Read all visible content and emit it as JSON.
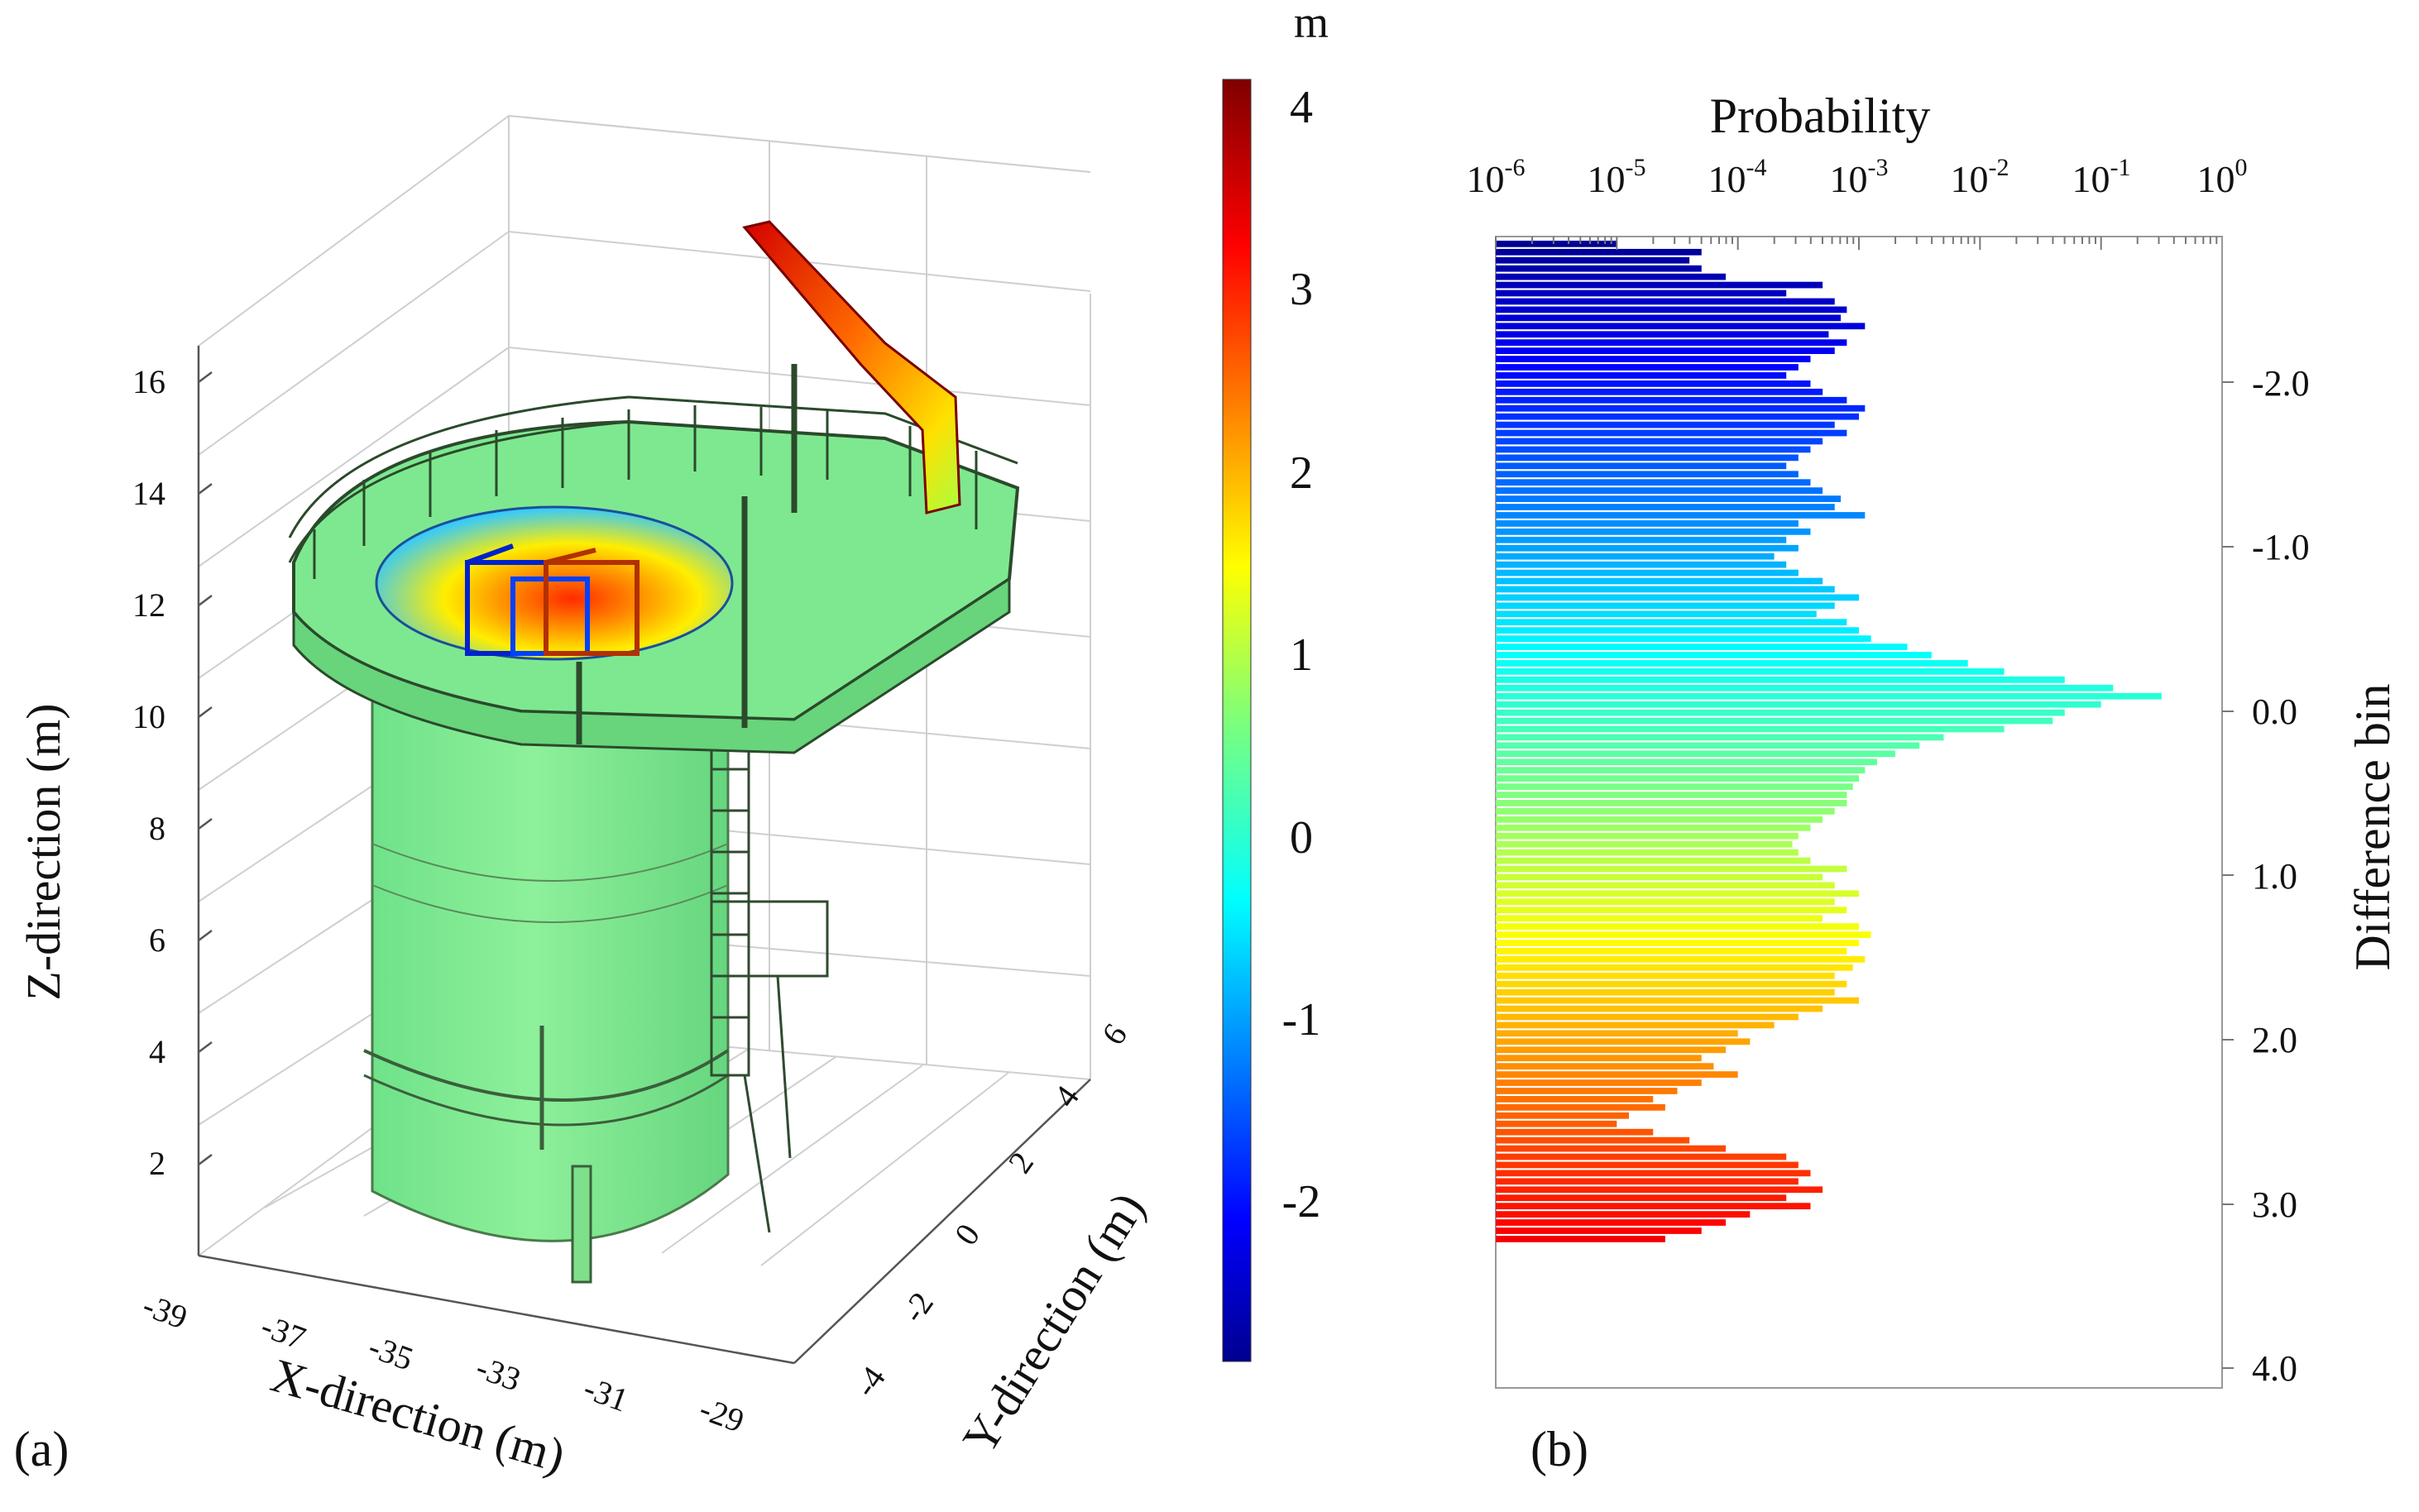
{
  "figure": {
    "panel_a_label": "(a)",
    "panel_b_label": "(b)"
  },
  "chart_data": [
    {
      "type": "scatter",
      "subtype": "3d-point-cloud",
      "panel": "(a)",
      "title": "",
      "xlabel": "X-direction (m)",
      "ylabel": "Y-direction (m)",
      "zlabel": "Z-direction (m)",
      "x_ticks": [
        "-39",
        "-37",
        "-35",
        "-33",
        "-31",
        "-29"
      ],
      "y_ticks": [
        "-4",
        "-2",
        "0",
        "2",
        "4",
        "6"
      ],
      "z_ticks": [
        "2",
        "4",
        "6",
        "8",
        "10",
        "12",
        "14",
        "16"
      ],
      "xlim": [
        -39,
        -29
      ],
      "ylim": [
        -4,
        6
      ],
      "zlim": [
        0,
        16
      ],
      "grid": true,
      "colorbar": {
        "unit": "m",
        "range": [
          -2.9,
          4.1
        ],
        "ticks": [
          "4",
          "3",
          "2",
          "1",
          "0",
          "-1",
          "-2"
        ],
        "colormap": "jet"
      }
    },
    {
      "type": "bar",
      "orientation": "horizontal",
      "panel": "(b)",
      "title": "Probability",
      "xlabel": "Probability",
      "ylabel": "Difference bin",
      "x_scale": "log",
      "xlim_exponent": [
        -6,
        0
      ],
      "x_tick_base": "10",
      "x_tick_exponents": [
        "-6",
        "-5",
        "-4",
        "-3",
        "-2",
        "-1",
        "0"
      ],
      "y_ticks": [
        "-2.0",
        "-1.0",
        "0.0",
        "1.0",
        "2.0",
        "3.0",
        "4.0"
      ],
      "ylim": [
        -2.8,
        4.2
      ],
      "legend": "none",
      "bins_start": -2.75,
      "bin_width": 0.05,
      "log10_values": [
        -5.0,
        -4.3,
        -4.4,
        -4.3,
        -4.1,
        -3.3,
        -3.6,
        -3.2,
        -3.1,
        -3.15,
        -2.95,
        -3.25,
        -3.1,
        -3.2,
        -3.4,
        -3.5,
        -3.6,
        -3.4,
        -3.3,
        -3.1,
        -2.95,
        -3.0,
        -3.2,
        -3.1,
        -3.3,
        -3.4,
        -3.5,
        -3.6,
        -3.5,
        -3.4,
        -3.3,
        -3.15,
        -3.2,
        -2.95,
        -3.5,
        -3.4,
        -3.6,
        -3.5,
        -3.7,
        -3.6,
        -3.5,
        -3.3,
        -3.2,
        -3.0,
        -3.2,
        -3.35,
        -3.1,
        -3.0,
        -2.9,
        -2.6,
        -2.4,
        -2.1,
        -1.8,
        -1.3,
        -0.9,
        -0.5,
        -1.0,
        -1.3,
        -1.4,
        -1.8,
        -2.3,
        -2.5,
        -2.7,
        -2.85,
        -2.95,
        -3.0,
        -3.05,
        -3.1,
        -3.1,
        -3.2,
        -3.3,
        -3.4,
        -3.5,
        -3.55,
        -3.5,
        -3.4,
        -3.1,
        -3.3,
        -3.2,
        -3.0,
        -3.2,
        -3.1,
        -3.3,
        -3.0,
        -2.9,
        -3.0,
        -3.1,
        -2.95,
        -3.05,
        -3.2,
        -3.1,
        -3.2,
        -3.0,
        -3.3,
        -3.5,
        -3.7,
        -4.0,
        -3.9,
        -4.1,
        -4.3,
        -4.2,
        -4.0,
        -4.3,
        -4.5,
        -4.7,
        -4.6,
        -4.9,
        -5.0,
        -4.7,
        -4.4,
        -4.1,
        -3.6,
        -3.5,
        -3.4,
        -3.5,
        -3.3,
        -3.6,
        -3.4,
        -3.9,
        -4.1,
        -4.3,
        -4.6
      ]
    }
  ]
}
